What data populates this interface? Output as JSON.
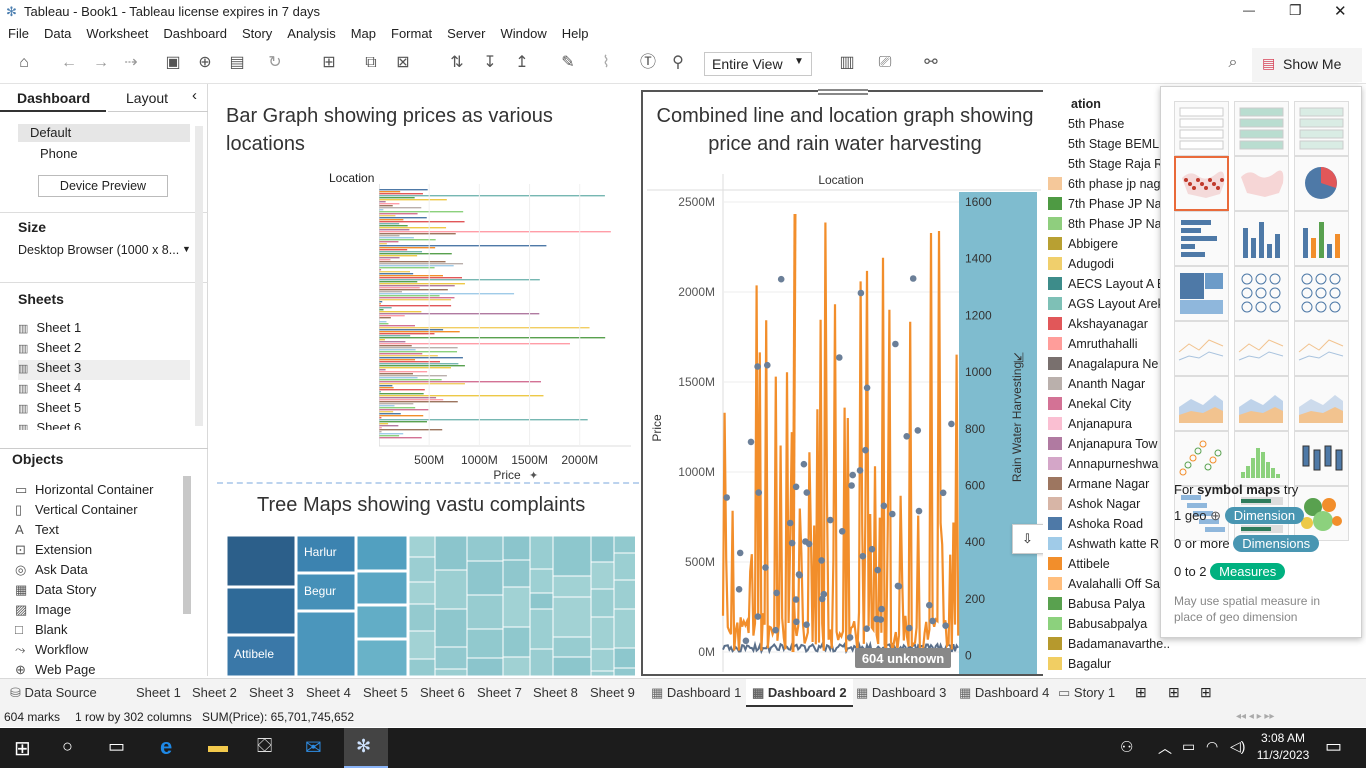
{
  "window": {
    "title": "Tableau - Book1 - Tableau license expires in 7 days",
    "minimize": "—",
    "restore": "❐",
    "close": "✕"
  },
  "menu": [
    "File",
    "Data",
    "Worksheet",
    "Dashboard",
    "Story",
    "Analysis",
    "Map",
    "Format",
    "Server",
    "Window",
    "Help"
  ],
  "toolbar": {
    "view_select": "Entire View",
    "show_me": "Show Me"
  },
  "left_pane": {
    "tabs": {
      "dashboard": "Dashboard",
      "layout": "Layout"
    },
    "devices": {
      "default": "Default",
      "phone": "Phone",
      "preview_button": "Device Preview"
    },
    "size": {
      "heading": "Size",
      "value": "Desktop Browser (1000 x 8..."
    },
    "sheets": {
      "heading": "Sheets",
      "items": [
        "Sheet 1",
        "Sheet 2",
        "Sheet 3",
        "Sheet 4",
        "Sheet 5",
        "Sheet 6"
      ]
    },
    "objects": {
      "heading": "Objects",
      "items": [
        "Horizontal Container",
        "Vertical Container",
        "Text",
        "Extension",
        "Ask Data",
        "Data Story",
        "Image",
        "Blank",
        "Workflow",
        "Web Page"
      ]
    }
  },
  "dashboard": {
    "bar_title": "Bar Graph showing prices as various locations",
    "bar_axis_header": "Location",
    "bar_x_label": "Price",
    "bar_ticks": [
      "500M",
      "1000M",
      "1500M",
      "2000M"
    ],
    "tree_title": "Tree Maps showing vastu complaints",
    "tree_labels": [
      "Harlur",
      "Begur",
      "Attibele"
    ],
    "combo_title": "Combined line and location graph showing price and rain water harvesting",
    "combo_header": "Location",
    "combo_y_left": "Price",
    "combo_y_right": "Rain Water Harvesting",
    "combo_left_ticks": [
      "2500M",
      "2000M",
      "1500M",
      "1000M",
      "500M",
      "0M"
    ],
    "combo_right_ticks": [
      "1600",
      "1400",
      "1200",
      "1000",
      "800",
      "600",
      "400",
      "200",
      "0"
    ],
    "unknown_badge": "604 unknown"
  },
  "legend": {
    "heading": "ation",
    "items": [
      {
        "label": "5th Phase",
        "color": "#ffffff"
      },
      {
        "label": "5th Stage BEML",
        "color": "#ffffff"
      },
      {
        "label": "5th Stage Raja R",
        "color": "#ffffff"
      },
      {
        "label": "6th phase jp nag",
        "color": "#f5c89a"
      },
      {
        "label": "7th Phase JP Na",
        "color": "#4e9a43"
      },
      {
        "label": "8th Phase JP Na",
        "color": "#8fce7e"
      },
      {
        "label": "Abbigere",
        "color": "#b8a032"
      },
      {
        "label": "Adugodi",
        "color": "#f0cf6c"
      },
      {
        "label": "AECS Layout A B",
        "color": "#3d8c8a"
      },
      {
        "label": "AGS Layout Arek",
        "color": "#7ec0b6"
      },
      {
        "label": "Akshayanagar",
        "color": "#e15759"
      },
      {
        "label": "Amruthahalli",
        "color": "#ff9d9a"
      },
      {
        "label": "Anagalapura Ne",
        "color": "#79706e"
      },
      {
        "label": "Ananth Nagar",
        "color": "#bab0ac"
      },
      {
        "label": "Anekal City",
        "color": "#d37295"
      },
      {
        "label": "Anjanapura",
        "color": "#fabfd2"
      },
      {
        "label": "Anjanapura Tow",
        "color": "#b07aa1"
      },
      {
        "label": "Annapurneshwa",
        "color": "#d4a6c8"
      },
      {
        "label": "Armane Nagar",
        "color": "#9d7660"
      },
      {
        "label": "Ashok Nagar",
        "color": "#d7b5a6"
      },
      {
        "label": "Ashoka Road",
        "color": "#4e79a7"
      },
      {
        "label": "Ashwath katte R",
        "color": "#a0cbe8"
      },
      {
        "label": "Attibele",
        "color": "#f28e2b"
      },
      {
        "label": "Avalahalli Off Sa",
        "color": "#ffbe7d"
      },
      {
        "label": "Babusa Palya",
        "color": "#59a14f"
      },
      {
        "label": "Babusabpalya",
        "color": "#8cd17d"
      },
      {
        "label": "Badamanavarthe..",
        "color": "#b6992d"
      },
      {
        "label": "Bagalur",
        "color": "#f1ce63"
      }
    ]
  },
  "show_me": {
    "hint_prefix": "For ",
    "hint_bold": "symbol maps",
    "hint_suffix": " try",
    "req1_count": "1 geo",
    "req1_pill": "Dimension",
    "req2_count": "0 or more",
    "req2_pill": "Dimensions",
    "req3_count": "0 to 2",
    "req3_pill": "Measures",
    "note": "May use spatial measure in place of geo dimension",
    "colors": {
      "dimension": "#4996b2",
      "measure": "#00b180"
    }
  },
  "tabs": [
    "Data Source",
    "Sheet 1",
    "Sheet 2",
    "Sheet 3",
    "Sheet 4",
    "Sheet 5",
    "Sheet 6",
    "Sheet 7",
    "Sheet 8",
    "Sheet 9",
    "Dashboard 1",
    "Dashboard 2",
    "Dashboard 3",
    "Dashboard 4",
    "Story 1"
  ],
  "status": {
    "marks": "604 marks",
    "rows": "1 row by 302 columns",
    "sum": "SUM(Price): 65,701,745,652"
  },
  "taskbar": {
    "time": "3:08 AM",
    "date": "11/3/2023"
  }
}
